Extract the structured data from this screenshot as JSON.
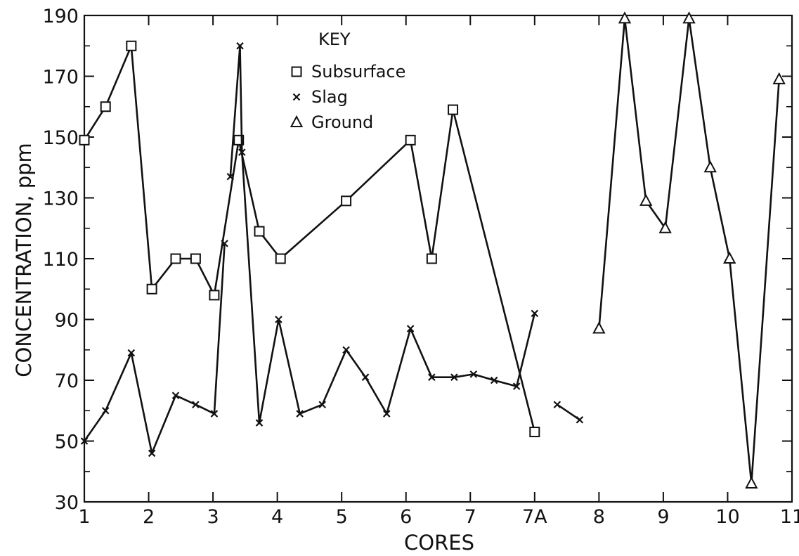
{
  "chart_data": {
    "type": "line",
    "xlabel": "CORES",
    "ylabel": "CONCENTRATION, ppm",
    "ylim": [
      30,
      190
    ],
    "y_ticks": [
      30,
      50,
      70,
      90,
      110,
      130,
      150,
      170,
      190
    ],
    "x_tick_labels": [
      "1",
      "2",
      "3",
      "4",
      "5",
      "6",
      "7",
      "7A",
      "8",
      "9",
      "10",
      "11"
    ],
    "legend": {
      "title": "KEY",
      "position": "top-center",
      "entries": [
        {
          "name": "Subsurface",
          "marker": "square"
        },
        {
          "name": "Slag",
          "marker": "x"
        },
        {
          "name": "Ground",
          "marker": "triangle"
        }
      ]
    },
    "series": [
      {
        "name": "Subsurface",
        "marker": "square",
        "segments": [
          [
            [
              1.0,
              149
            ],
            [
              1.33,
              160
            ],
            [
              1.73,
              180
            ],
            [
              2.05,
              100
            ],
            [
              2.42,
              110
            ],
            [
              2.73,
              110
            ],
            [
              3.02,
              98
            ],
            [
              3.4,
              149
            ],
            [
              3.72,
              119
            ],
            [
              4.05,
              110
            ],
            [
              5.07,
              129
            ],
            [
              6.07,
              149
            ],
            [
              6.4,
              110
            ],
            [
              6.73,
              159
            ],
            [
              8.0,
              53
            ]
          ]
        ]
      },
      {
        "name": "Slag",
        "marker": "x",
        "segments": [
          [
            [
              1.0,
              50
            ],
            [
              1.33,
              60
            ],
            [
              1.73,
              79
            ],
            [
              2.05,
              46
            ],
            [
              2.42,
              65
            ],
            [
              2.73,
              62
            ],
            [
              3.02,
              59
            ],
            [
              3.18,
              115
            ]
          ],
          [
            [
              3.27,
              137
            ],
            [
              3.42,
              180
            ],
            [
              3.45,
              145
            ],
            [
              3.72,
              56
            ],
            [
              4.02,
              90
            ],
            [
              4.35,
              59
            ],
            [
              4.7,
              62
            ],
            [
              5.07,
              80
            ],
            [
              5.37,
              71
            ],
            [
              5.7,
              59
            ],
            [
              6.07,
              87
            ],
            [
              6.4,
              71
            ],
            [
              6.75,
              71
            ],
            [
              7.05,
              72
            ],
            [
              7.37,
              70
            ],
            [
              7.72,
              68
            ],
            [
              8.0,
              92
            ]
          ],
          [
            [
              8.35,
              62
            ],
            [
              8.7,
              57
            ]
          ]
        ]
      },
      {
        "name": "Ground",
        "marker": "triangle",
        "segments": [
          [
            [
              9.0,
              87
            ],
            [
              9.4,
              189
            ],
            [
              9.73,
              129
            ],
            [
              10.03,
              120
            ],
            [
              10.4,
              189
            ],
            [
              10.73,
              140
            ],
            [
              11.03,
              110
            ],
            [
              11.37,
              36
            ],
            [
              11.8,
              169
            ]
          ]
        ]
      }
    ]
  }
}
